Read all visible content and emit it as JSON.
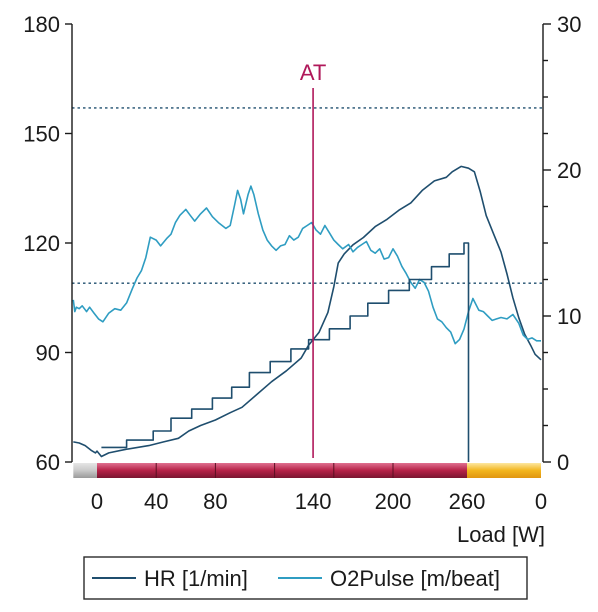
{
  "chart_data": {
    "type": "line",
    "title": "",
    "xlabel": "Load [W]",
    "x_tick_labels": [
      "0",
      "40",
      "80",
      "140",
      "200",
      "260",
      "0"
    ],
    "y_left": {
      "ticks": [
        60,
        90,
        120,
        150,
        180
      ],
      "ylim": [
        60,
        180
      ]
    },
    "y_right": {
      "ticks": [
        0,
        10,
        20,
        30
      ],
      "ylim": [
        0,
        30
      ],
      "minor_step": 2.5
    },
    "grid": false,
    "legend_position": "bottom",
    "reference_lines": [
      {
        "axis": "left",
        "y": 157
      },
      {
        "axis": "left",
        "y": 109
      }
    ],
    "annotation": {
      "text": "AT",
      "x": 146
    },
    "phases": [
      {
        "name": "rest",
        "x0": -16,
        "x1": 0,
        "color": "#c9c9c9"
      },
      {
        "name": "exercise",
        "x0": 0,
        "x1": 250,
        "color": "#b52147"
      },
      {
        "name": "recovery",
        "x0": 250,
        "x1": 300,
        "color": "#f2b51d"
      }
    ],
    "phase_ticks": [
      40,
      80,
      120,
      160,
      200
    ],
    "series": [
      {
        "name": "HR [1/min]",
        "axis": "left",
        "color": "#1f4e6e",
        "points": [
          [
            -16,
            65.5
          ],
          [
            -12,
            65.2
          ],
          [
            -8,
            64.5
          ],
          [
            -4,
            63.2
          ],
          [
            -1,
            62.5
          ],
          [
            0,
            63.0
          ],
          [
            3,
            61.5
          ],
          [
            8,
            62.5
          ],
          [
            20,
            63.5
          ],
          [
            35,
            64.5
          ],
          [
            45,
            65.5
          ],
          [
            55,
            66.5
          ],
          [
            62,
            68.5
          ],
          [
            70,
            70.0
          ],
          [
            80,
            71.5
          ],
          [
            90,
            73.5
          ],
          [
            98,
            75.0
          ],
          [
            108,
            78.5
          ],
          [
            118,
            82.0
          ],
          [
            128,
            85.0
          ],
          [
            138,
            88.5
          ],
          [
            143,
            92.0
          ],
          [
            150,
            95.5
          ],
          [
            156,
            101.0
          ],
          [
            160,
            108.0
          ],
          [
            163,
            114.5
          ],
          [
            167,
            117.0
          ],
          [
            173,
            119.5
          ],
          [
            180,
            121.5
          ],
          [
            188,
            124.5
          ],
          [
            196,
            126.5
          ],
          [
            204,
            129.0
          ],
          [
            212,
            131.0
          ],
          [
            220,
            134.5
          ],
          [
            228,
            137.0
          ],
          [
            236,
            138.0
          ],
          [
            240,
            139.5
          ],
          [
            246,
            141.0
          ],
          [
            251,
            140.5
          ],
          [
            255,
            139.5
          ],
          [
            259,
            134.0
          ],
          [
            263,
            127.5
          ],
          [
            268,
            122.5
          ],
          [
            273,
            117.5
          ],
          [
            277,
            111.5
          ],
          [
            281,
            105.0
          ],
          [
            285,
            99.5
          ],
          [
            289,
            95.0
          ],
          [
            293,
            92.0
          ],
          [
            296,
            89.5
          ],
          [
            300,
            88.0
          ]
        ]
      },
      {
        "name": "O2Pulse [m/beat]",
        "axis": "right",
        "color": "#2f9dc2",
        "points": [
          [
            -16,
            11.1
          ],
          [
            -15,
            10.3
          ],
          [
            -14,
            10.6
          ],
          [
            -12,
            10.5
          ],
          [
            -10,
            10.7
          ],
          [
            -7,
            10.3
          ],
          [
            -5,
            10.6
          ],
          [
            -2,
            10.2
          ],
          [
            1,
            9.8
          ],
          [
            4,
            9.6
          ],
          [
            8,
            10.2
          ],
          [
            12,
            10.5
          ],
          [
            16,
            10.4
          ],
          [
            20,
            10.9
          ],
          [
            24,
            11.9
          ],
          [
            27,
            12.6
          ],
          [
            30,
            13.1
          ],
          [
            33,
            14.0
          ],
          [
            36,
            15.4
          ],
          [
            40,
            15.2
          ],
          [
            43,
            14.8
          ],
          [
            47,
            15.3
          ],
          [
            50,
            15.6
          ],
          [
            53,
            16.4
          ],
          [
            56,
            16.9
          ],
          [
            60,
            17.3
          ],
          [
            63,
            16.9
          ],
          [
            66,
            16.5
          ],
          [
            70,
            17.0
          ],
          [
            74,
            17.4
          ],
          [
            78,
            16.8
          ],
          [
            82,
            16.4
          ],
          [
            87,
            16.0
          ],
          [
            90,
            16.2
          ],
          [
            93,
            17.6
          ],
          [
            95,
            18.6
          ],
          [
            97,
            18.0
          ],
          [
            99,
            17.0
          ],
          [
            102,
            18.3
          ],
          [
            104,
            18.9
          ],
          [
            106,
            18.3
          ],
          [
            109,
            17.0
          ],
          [
            112,
            15.9
          ],
          [
            115,
            15.2
          ],
          [
            118,
            14.8
          ],
          [
            121,
            14.5
          ],
          [
            124,
            14.8
          ],
          [
            127,
            14.9
          ],
          [
            130,
            15.5
          ],
          [
            133,
            15.2
          ],
          [
            136,
            15.4
          ],
          [
            139,
            16.0
          ],
          [
            142,
            16.2
          ],
          [
            145,
            16.4
          ],
          [
            148,
            15.9
          ],
          [
            151,
            15.6
          ],
          [
            154,
            16.2
          ],
          [
            157,
            15.7
          ],
          [
            160,
            15.2
          ],
          [
            163,
            14.9
          ],
          [
            166,
            14.6
          ],
          [
            170,
            14.9
          ],
          [
            173,
            14.4
          ],
          [
            176,
            14.7
          ],
          [
            179,
            14.9
          ],
          [
            182,
            15.1
          ],
          [
            185,
            14.5
          ],
          [
            188,
            14.3
          ],
          [
            191,
            14.6
          ],
          [
            194,
            13.9
          ],
          [
            197,
            14.0
          ],
          [
            200,
            14.6
          ],
          [
            203,
            14.1
          ],
          [
            206,
            13.4
          ],
          [
            209,
            12.9
          ],
          [
            212,
            12.3
          ],
          [
            215,
            11.9
          ],
          [
            218,
            12.5
          ],
          [
            221,
            12.3
          ],
          [
            224,
            11.7
          ],
          [
            227,
            10.6
          ],
          [
            230,
            9.8
          ],
          [
            233,
            9.6
          ],
          [
            236,
            9.2
          ],
          [
            239,
            8.9
          ],
          [
            242,
            8.1
          ],
          [
            245,
            8.4
          ],
          [
            248,
            9.1
          ],
          [
            251,
            10.3
          ],
          [
            254,
            11.2
          ],
          [
            258,
            10.4
          ],
          [
            261,
            10.3
          ],
          [
            264,
            10.0
          ],
          [
            267,
            9.7
          ],
          [
            270,
            9.8
          ],
          [
            273,
            9.9
          ],
          [
            277,
            9.8
          ],
          [
            281,
            10.1
          ],
          [
            285,
            9.5
          ],
          [
            288,
            8.7
          ],
          [
            291,
            8.4
          ],
          [
            294,
            8.5
          ],
          [
            297,
            8.3
          ],
          [
            300,
            8.3
          ]
        ]
      },
      {
        "name": "",
        "axis": "left",
        "color": "#1f4e6e",
        "step": true,
        "points": [
          [
            3,
            64.0
          ],
          [
            20,
            64.0
          ],
          [
            20,
            66.0
          ],
          [
            38,
            66.0
          ],
          [
            38,
            68.5
          ],
          [
            50,
            68.5
          ],
          [
            50,
            72.0
          ],
          [
            64,
            72.0
          ],
          [
            64,
            74.5
          ],
          [
            78,
            74.5
          ],
          [
            78,
            77.5
          ],
          [
            91,
            77.5
          ],
          [
            91,
            80.5
          ],
          [
            103,
            80.5
          ],
          [
            103,
            84.5
          ],
          [
            117,
            84.5
          ],
          [
            117,
            87.5
          ],
          [
            131,
            87.5
          ],
          [
            131,
            91.0
          ],
          [
            143,
            91.0
          ],
          [
            143,
            93.5
          ],
          [
            157,
            93.5
          ],
          [
            157,
            96.5
          ],
          [
            171,
            96.5
          ],
          [
            171,
            100.0
          ],
          [
            183,
            100.0
          ],
          [
            183,
            103.5
          ],
          [
            197,
            103.5
          ],
          [
            197,
            107.0
          ],
          [
            211,
            107.0
          ],
          [
            211,
            110.0
          ],
          [
            226,
            110.0
          ],
          [
            226,
            113.5
          ],
          [
            238,
            113.5
          ],
          [
            238,
            117.0
          ],
          [
            248,
            117.0
          ],
          [
            248,
            120.0
          ],
          [
            251,
            120.0
          ],
          [
            251,
            60.0
          ]
        ]
      }
    ]
  }
}
